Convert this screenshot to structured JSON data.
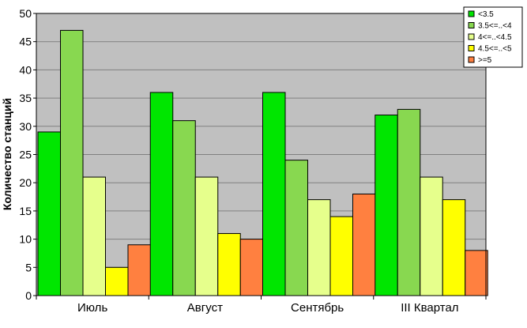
{
  "chart_data": {
    "type": "bar",
    "title": "",
    "xlabel": "",
    "ylabel": "Количество станций",
    "ylim": [
      0,
      50
    ],
    "ytick_step": 5,
    "grid": true,
    "legend_position": "top-right",
    "plot_background": "#c0c0c0",
    "categories": [
      "Июль",
      "Август",
      "Сентябрь",
      "III Квартал"
    ],
    "series": [
      {
        "name": "<3.5",
        "color": "#00e600",
        "values": [
          29,
          36,
          36,
          32
        ]
      },
      {
        "name": "3.5<=..<4",
        "color": "#88d850",
        "values": [
          47,
          31,
          24,
          33
        ]
      },
      {
        "name": "4<=..<4.5",
        "color": "#e6ff8c",
        "values": [
          21,
          21,
          17,
          21
        ]
      },
      {
        "name": "4.5<=..<5",
        "color": "#ffff00",
        "values": [
          5,
          11,
          14,
          17
        ]
      },
      {
        "name": ">=5",
        "color": "#ff8040",
        "values": [
          9,
          10,
          18,
          8
        ]
      }
    ]
  }
}
